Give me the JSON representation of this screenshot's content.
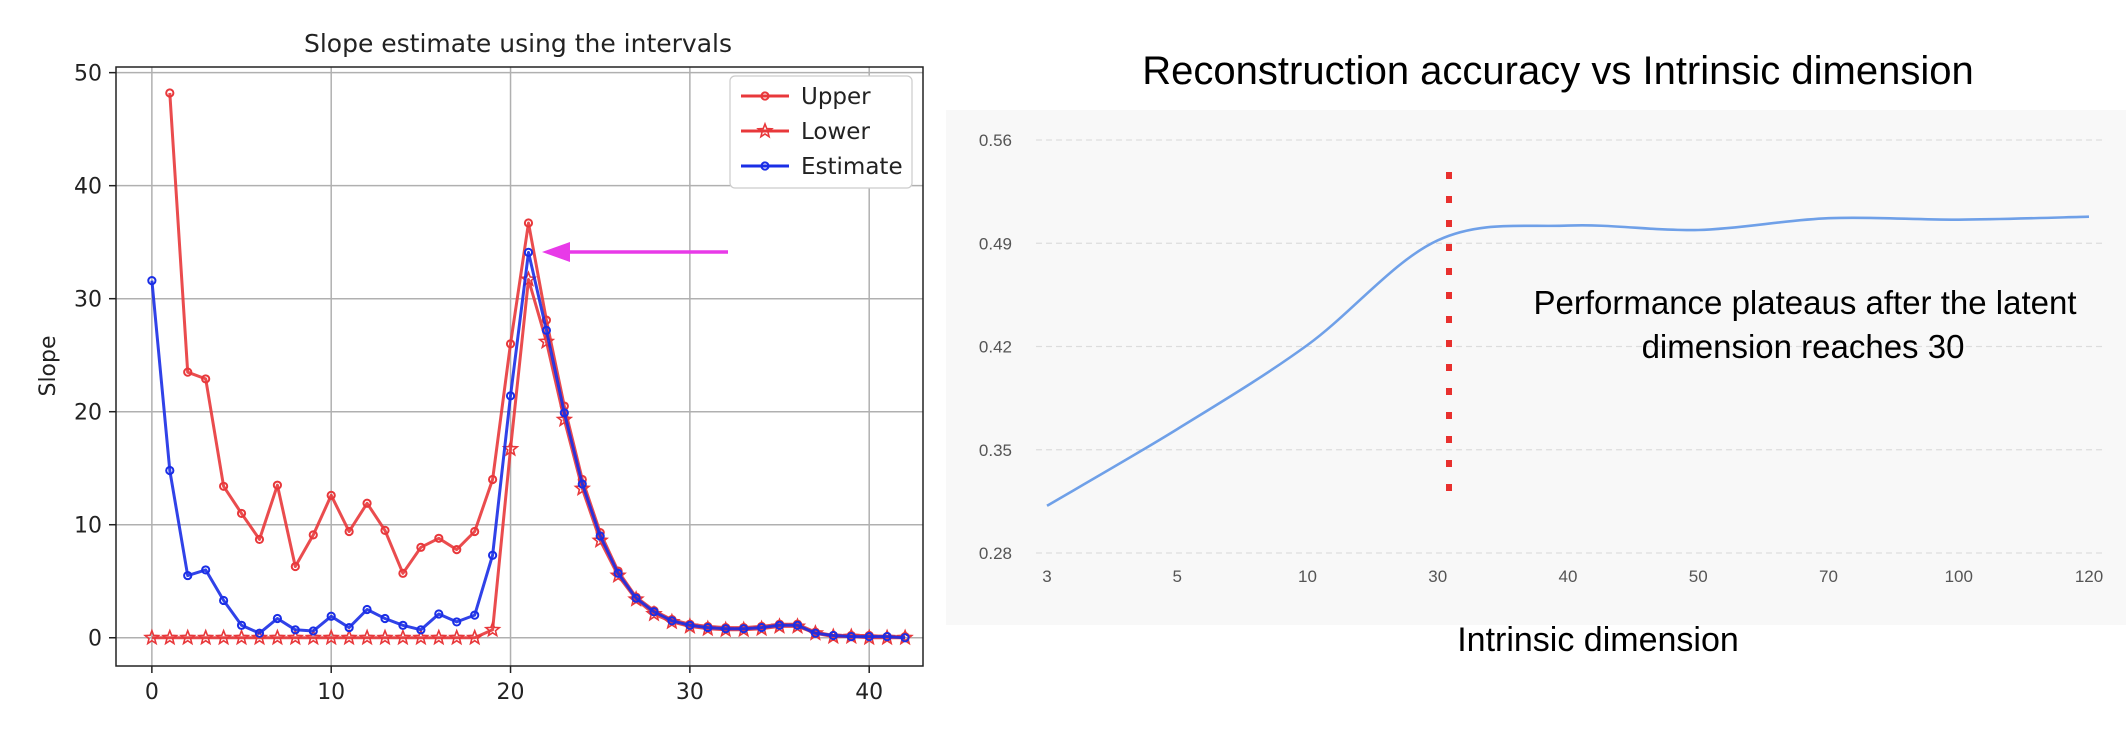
{
  "chart_data": [
    {
      "type": "line",
      "title": "Slope estimate using the intervals",
      "xlabel": "",
      "ylabel": "Slope",
      "xlim": [
        -2,
        43
      ],
      "ylim": [
        -2.5,
        50.5
      ],
      "xticks": [
        0,
        10,
        20,
        30,
        40
      ],
      "yticks": [
        0,
        10,
        20,
        30,
        40,
        50
      ],
      "grid": true,
      "legend_position": "top-right",
      "annotation": "magenta arrow pointing to peak at x=21",
      "series": [
        {
          "name": "Upper",
          "color": "#e8383b",
          "marker": "circle",
          "x": [
            1,
            2,
            3,
            4,
            5,
            6,
            7,
            8,
            9,
            10,
            11,
            12,
            13,
            14,
            15,
            16,
            17,
            18,
            19,
            20,
            21,
            22,
            23,
            24,
            25,
            26,
            27,
            28,
            29,
            30,
            31,
            32,
            33,
            34,
            35,
            36,
            37,
            38,
            39,
            40,
            41,
            42
          ],
          "values": [
            48.2,
            23.5,
            22.9,
            13.4,
            11,
            8.7,
            13.5,
            6.3,
            9.1,
            12.6,
            9.4,
            11.9,
            9.5,
            5.7,
            8,
            8.8,
            7.8,
            9.4,
            14,
            26,
            36.7,
            28.1,
            20.5,
            14,
            9.3,
            5.9,
            3.6,
            2.4,
            1.6,
            1.2,
            1,
            0.9,
            0.9,
            1,
            1.2,
            1.2,
            0.5,
            0.2,
            0.2,
            0.2,
            0.1,
            0.1
          ]
        },
        {
          "name": "Lower",
          "color": "#e8383b",
          "marker": "star",
          "x": [
            0,
            1,
            2,
            3,
            4,
            5,
            6,
            7,
            8,
            9,
            10,
            11,
            12,
            13,
            14,
            15,
            16,
            17,
            18,
            19,
            20,
            21,
            22,
            23,
            24,
            25,
            26,
            27,
            28,
            29,
            30,
            31,
            32,
            33,
            34,
            35,
            36,
            37,
            38,
            39,
            40,
            41,
            42
          ],
          "values": [
            0,
            0,
            0,
            0,
            0,
            0,
            0,
            0,
            0,
            0,
            0,
            0,
            0,
            0,
            0,
            0,
            0,
            0,
            0,
            0.7,
            16.7,
            31.7,
            26.2,
            19.3,
            13.2,
            8.6,
            5.5,
            3.4,
            2.1,
            1.4,
            1,
            0.8,
            0.7,
            0.7,
            0.8,
            1,
            1,
            0.4,
            0.1,
            0.1,
            0,
            0,
            0
          ]
        },
        {
          "name": "Estimate",
          "color": "#1a2ee6",
          "marker": "circle",
          "x": [
            0,
            1,
            2,
            3,
            4,
            5,
            6,
            7,
            8,
            9,
            10,
            11,
            12,
            13,
            14,
            15,
            16,
            17,
            18,
            19,
            20,
            21,
            22,
            23,
            24,
            25,
            26,
            27,
            28,
            29,
            30,
            31,
            32,
            33,
            34,
            35,
            36,
            37,
            38,
            39,
            40,
            41,
            42
          ],
          "values": [
            31.6,
            14.8,
            5.5,
            6,
            3.3,
            1.1,
            0.4,
            1.7,
            0.7,
            0.6,
            1.9,
            0.9,
            2.5,
            1.7,
            1.1,
            0.7,
            2.1,
            1.4,
            2,
            7.3,
            21.4,
            34.1,
            27.2,
            19.9,
            13.6,
            9,
            5.7,
            3.5,
            2.3,
            1.5,
            1.1,
            0.9,
            0.8,
            0.8,
            0.9,
            1.1,
            1.1,
            0.4,
            0.2,
            0.1,
            0.1,
            0.1,
            0
          ]
        }
      ]
    },
    {
      "type": "line",
      "title": "Reconstruction accuracy vs Intrinsic dimension",
      "xlabel": "Intrinsic dimension",
      "ylabel": "",
      "categories": [
        "3",
        "5",
        "10",
        "30",
        "40",
        "50",
        "70",
        "100",
        "120"
      ],
      "ylim": [
        0.28,
        0.56
      ],
      "yticks": [
        "0.28",
        "0.35",
        "0.42",
        "0.49",
        "0.56"
      ],
      "grid": true,
      "series": [
        {
          "color": "#6fa0e8",
          "values": [
            0.312,
            0.364,
            0.421,
            0.492,
            0.502,
            0.499,
            0.507,
            0.506,
            0.508
          ]
        }
      ],
      "annotation": {
        "lines": [
          "Performance plateaus after the latent",
          "dimension reaches 30"
        ],
        "marker": "red dotted vertical line at 30"
      }
    }
  ]
}
